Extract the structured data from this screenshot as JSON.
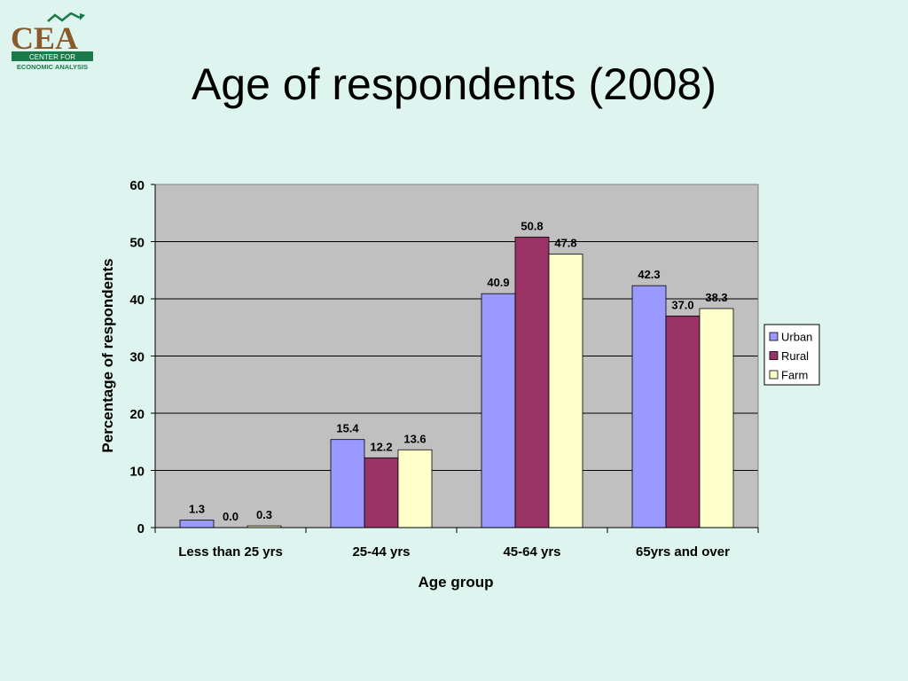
{
  "slide": {
    "title": "Age of respondents (2008)",
    "logo": {
      "text": "CEA",
      "subtitle_line1": "CENTER FOR",
      "subtitle_line2": "ECONOMIC ANALYSIS"
    }
  },
  "colors": {
    "background": "#ddf5ee",
    "plot_area": "#c0c0c0",
    "Urban": "#9999ff",
    "Rural": "#993366",
    "Farm": "#ffffcc",
    "logo_brown": "#8b5a2b",
    "logo_green": "#1a7a4a"
  },
  "chart_data": {
    "type": "bar",
    "title": "",
    "xlabel": "Age group",
    "ylabel": "Percentage of respondents",
    "categories": [
      "Less than 25 yrs",
      "25-44 yrs",
      "45-64 yrs",
      "65yrs and over"
    ],
    "series": [
      {
        "name": "Urban",
        "values": [
          1.3,
          15.4,
          40.9,
          42.3
        ],
        "labels": [
          "1.3",
          "15.4",
          "40.9",
          "42.3"
        ]
      },
      {
        "name": "Rural",
        "values": [
          0.0,
          12.2,
          50.8,
          37.0
        ],
        "labels": [
          "0.0",
          "12.2",
          "50.8",
          "37.0"
        ]
      },
      {
        "name": "Farm",
        "values": [
          0.3,
          13.6,
          47.8,
          38.3
        ],
        "labels": [
          "0.3",
          "13.6",
          "47.8",
          "38.3"
        ]
      }
    ],
    "ylim": [
      0,
      60
    ],
    "yticks": [
      "0",
      "10",
      "20",
      "30",
      "40",
      "50",
      "60"
    ],
    "grid": true,
    "legend": "right"
  }
}
